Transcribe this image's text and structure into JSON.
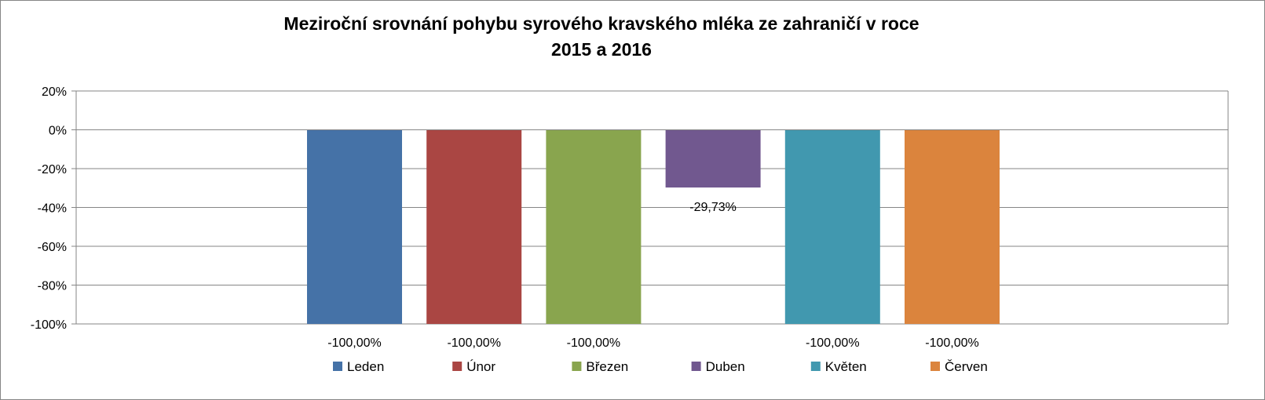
{
  "chart_data": {
    "type": "bar",
    "title_line1": "Meziroční srovnání pohybu syrového kravského mléka ze zahraničí v roce",
    "title_line2": "2015 a 2016",
    "xlabel": "",
    "ylabel": "",
    "ylim": [
      -100,
      20
    ],
    "yticks": [
      20,
      0,
      -20,
      -40,
      -60,
      -80,
      -100
    ],
    "ytick_labels": [
      "20%",
      "0%",
      "-20%",
      "-40%",
      "-60%",
      "-80%",
      "-100%"
    ],
    "grid": true,
    "legend_position": "bottom",
    "series": [
      {
        "name": "Leden",
        "value": -100.0,
        "label": "-100,00%",
        "color": "#4572A7"
      },
      {
        "name": "Únor",
        "value": -100.0,
        "label": "-100,00%",
        "color": "#AA4643"
      },
      {
        "name": "Březen",
        "value": -100.0,
        "label": "-100,00%",
        "color": "#89A54E"
      },
      {
        "name": "Duben",
        "value": -29.73,
        "label": "-29,73%",
        "color": "#71588F"
      },
      {
        "name": "Květen",
        "value": -100.0,
        "label": "-100,00%",
        "color": "#4198AF"
      },
      {
        "name": "Červen",
        "value": -100.0,
        "label": "-100,00%",
        "color": "#DB843D"
      }
    ]
  }
}
